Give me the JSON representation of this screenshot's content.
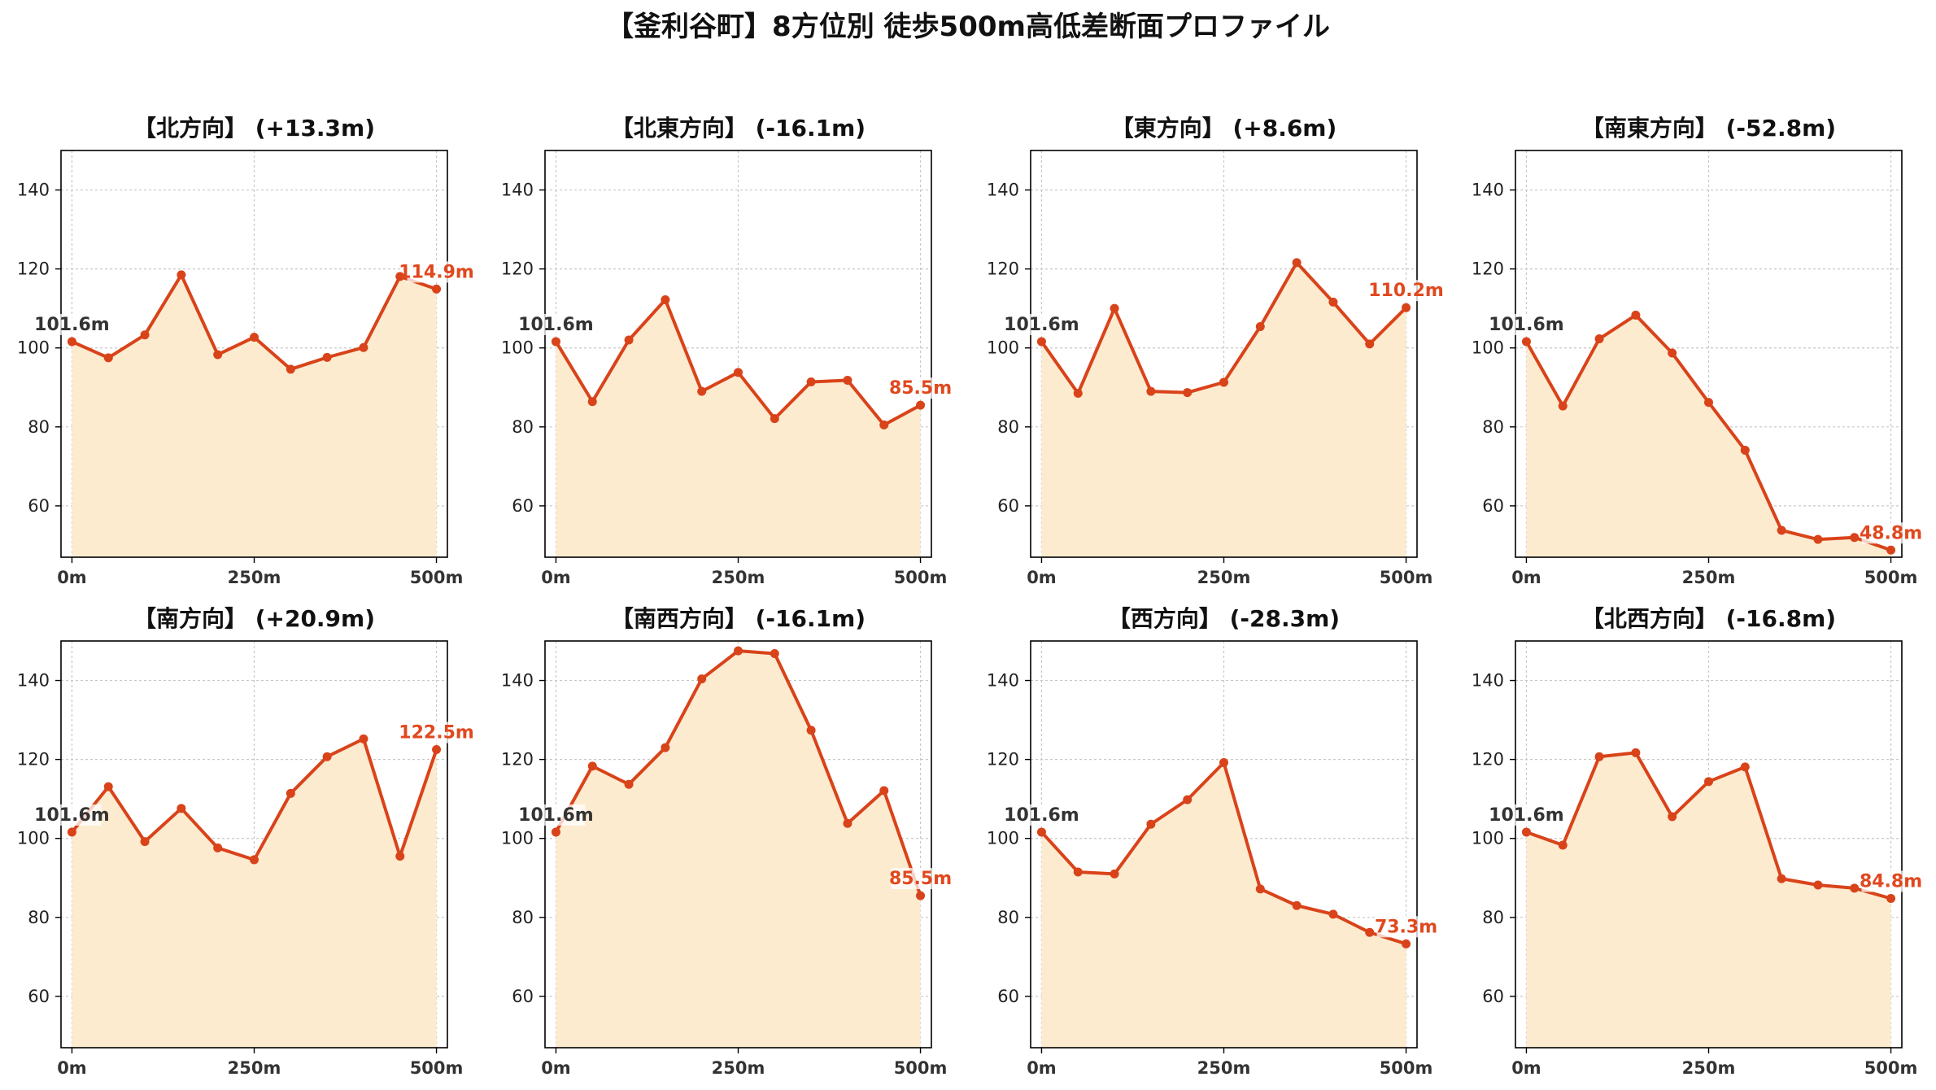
{
  "chart_data": {
    "title": "【釜利谷町】8方位別 徒歩500m高低差断面プロファイル",
    "type": "area",
    "line_color": "#d9431a",
    "fill_color": "#fdebd0",
    "end_label_color": "#e0481e",
    "grid": true,
    "ylim": [
      47,
      150
    ],
    "xlim": [
      -15,
      515
    ],
    "yticks": [
      60,
      80,
      100,
      120,
      140
    ],
    "xticks": [
      {
        "value": 0,
        "label": "0m"
      },
      {
        "value": 250,
        "label": "250m"
      },
      {
        "value": 500,
        "label": "500m"
      }
    ],
    "x": [
      0,
      50,
      100,
      150,
      200,
      250,
      300,
      350,
      400,
      450,
      500
    ],
    "panels": [
      {
        "title": "【北方向】 (+13.3m)",
        "start_label": "101.6m",
        "end_label": "114.9m",
        "values": [
          101.6,
          97.5,
          103.3,
          118.5,
          98.3,
          102.7,
          94.6,
          97.6,
          100.1,
          118.1,
          114.9
        ]
      },
      {
        "title": "【北東方向】 (-16.1m)",
        "start_label": "101.6m",
        "end_label": "85.5m",
        "values": [
          101.6,
          86.4,
          102.0,
          112.2,
          89.0,
          93.8,
          82.1,
          91.4,
          91.8,
          80.5,
          85.5
        ]
      },
      {
        "title": "【東方向】 (+8.6m)",
        "start_label": "101.6m",
        "end_label": "110.2m",
        "values": [
          101.6,
          88.5,
          110.0,
          89.0,
          88.7,
          91.3,
          105.4,
          121.6,
          111.6,
          101.0,
          110.2
        ]
      },
      {
        "title": "【南東方向】 (-52.8m)",
        "start_label": "101.6m",
        "end_label": "48.8m",
        "values": [
          101.6,
          85.3,
          102.3,
          108.3,
          98.7,
          86.2,
          74.1,
          53.8,
          51.5,
          52.0,
          48.8
        ]
      },
      {
        "title": "【南方向】 (+20.9m)",
        "start_label": "101.6m",
        "end_label": "122.5m",
        "values": [
          101.6,
          113.1,
          99.2,
          107.6,
          97.6,
          94.6,
          111.4,
          120.7,
          125.2,
          95.5,
          122.5
        ]
      },
      {
        "title": "【南西方向】 (-16.1m)",
        "start_label": "101.6m",
        "end_label": "85.5m",
        "values": [
          101.6,
          118.3,
          113.7,
          123.0,
          140.4,
          147.5,
          146.8,
          127.4,
          103.8,
          112.1,
          85.5
        ]
      },
      {
        "title": "【西方向】 (-28.3m)",
        "start_label": "101.6m",
        "end_label": "73.3m",
        "values": [
          101.6,
          91.5,
          91.0,
          103.6,
          109.8,
          119.2,
          87.2,
          83.0,
          80.8,
          76.2,
          73.3
        ]
      },
      {
        "title": "【北西方向】 (-16.8m)",
        "start_label": "101.6m",
        "end_label": "84.8m",
        "values": [
          101.6,
          98.3,
          120.7,
          121.7,
          105.5,
          114.4,
          118.1,
          89.8,
          88.2,
          87.4,
          84.8
        ]
      }
    ]
  }
}
